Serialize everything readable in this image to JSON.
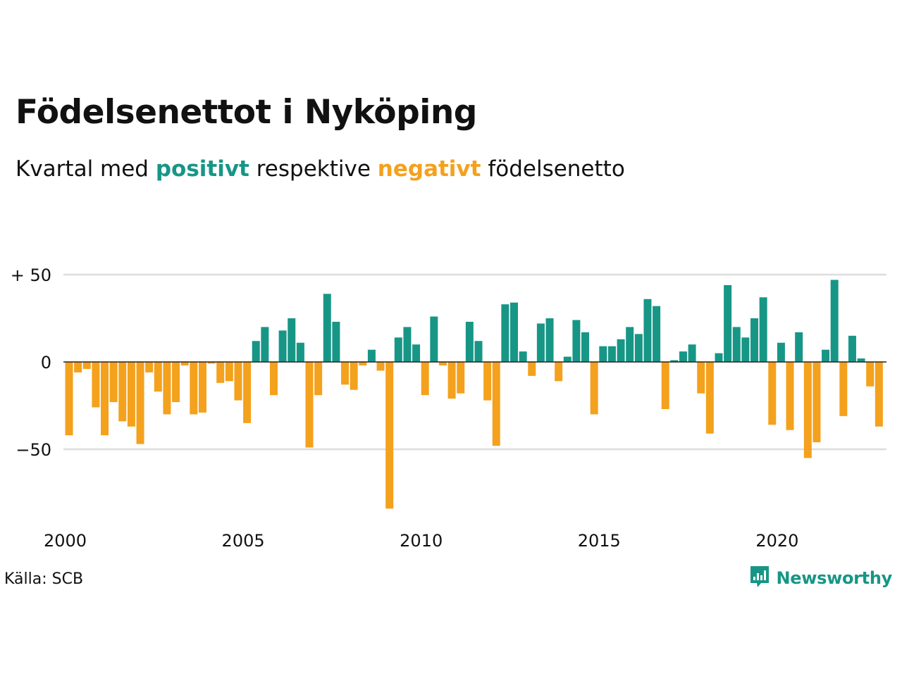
{
  "header": {
    "title": "Födelsenettot i Nyköping",
    "subtitle_prefix": "Kvartal med ",
    "subtitle_positive": "positivt",
    "subtitle_middle": " respektive ",
    "subtitle_negative": "negativt",
    "subtitle_suffix": " födelsenetto"
  },
  "footer": {
    "source": "Källa: SCB",
    "brand": "Newsworthy"
  },
  "colors": {
    "positive": "#179686",
    "negative": "#f4a11d",
    "grid": "#dddddd",
    "zero": "#222222"
  },
  "icons": {
    "brand": "bar-chart-speech-bubble-icon"
  },
  "chart_data": {
    "type": "bar",
    "x_start": "2000 Q1",
    "frequency": "quarterly",
    "xticks": [
      {
        "year": 2000,
        "label": "2000"
      },
      {
        "year": 2005,
        "label": "2005"
      },
      {
        "year": 2010,
        "label": "2010"
      },
      {
        "year": 2015,
        "label": "2015"
      },
      {
        "year": 2020,
        "label": "2020"
      }
    ],
    "yticks": [
      {
        "value": 50,
        "label": "+ 50"
      },
      {
        "value": 0,
        "label": "0"
      },
      {
        "value": -50,
        "label": "−50"
      }
    ],
    "ylim": [
      -90,
      55
    ],
    "grid": true,
    "values": [
      -42,
      -6,
      -4,
      -26,
      -42,
      -23,
      -34,
      -37,
      -47,
      -6,
      -17,
      -30,
      -23,
      -2,
      -30,
      -29,
      -1,
      -12,
      -11,
      -22,
      -35,
      12,
      20,
      -19,
      18,
      25,
      11,
      -49,
      -19,
      39,
      23,
      -13,
      -16,
      -2,
      7,
      -5,
      -84,
      14,
      20,
      10,
      -19,
      26,
      -2,
      -21,
      -18,
      23,
      12,
      -22,
      -48,
      33,
      34,
      6,
      -8,
      22,
      25,
      -11,
      3,
      24,
      17,
      -30,
      9,
      9,
      13,
      20,
      16,
      36,
      32,
      -27,
      1,
      6,
      10,
      -18,
      -41,
      5,
      44,
      20,
      14,
      25,
      37,
      -36,
      11,
      -39,
      17,
      -55,
      -46,
      7,
      47,
      -31,
      15,
      2,
      -14,
      -37
    ]
  }
}
